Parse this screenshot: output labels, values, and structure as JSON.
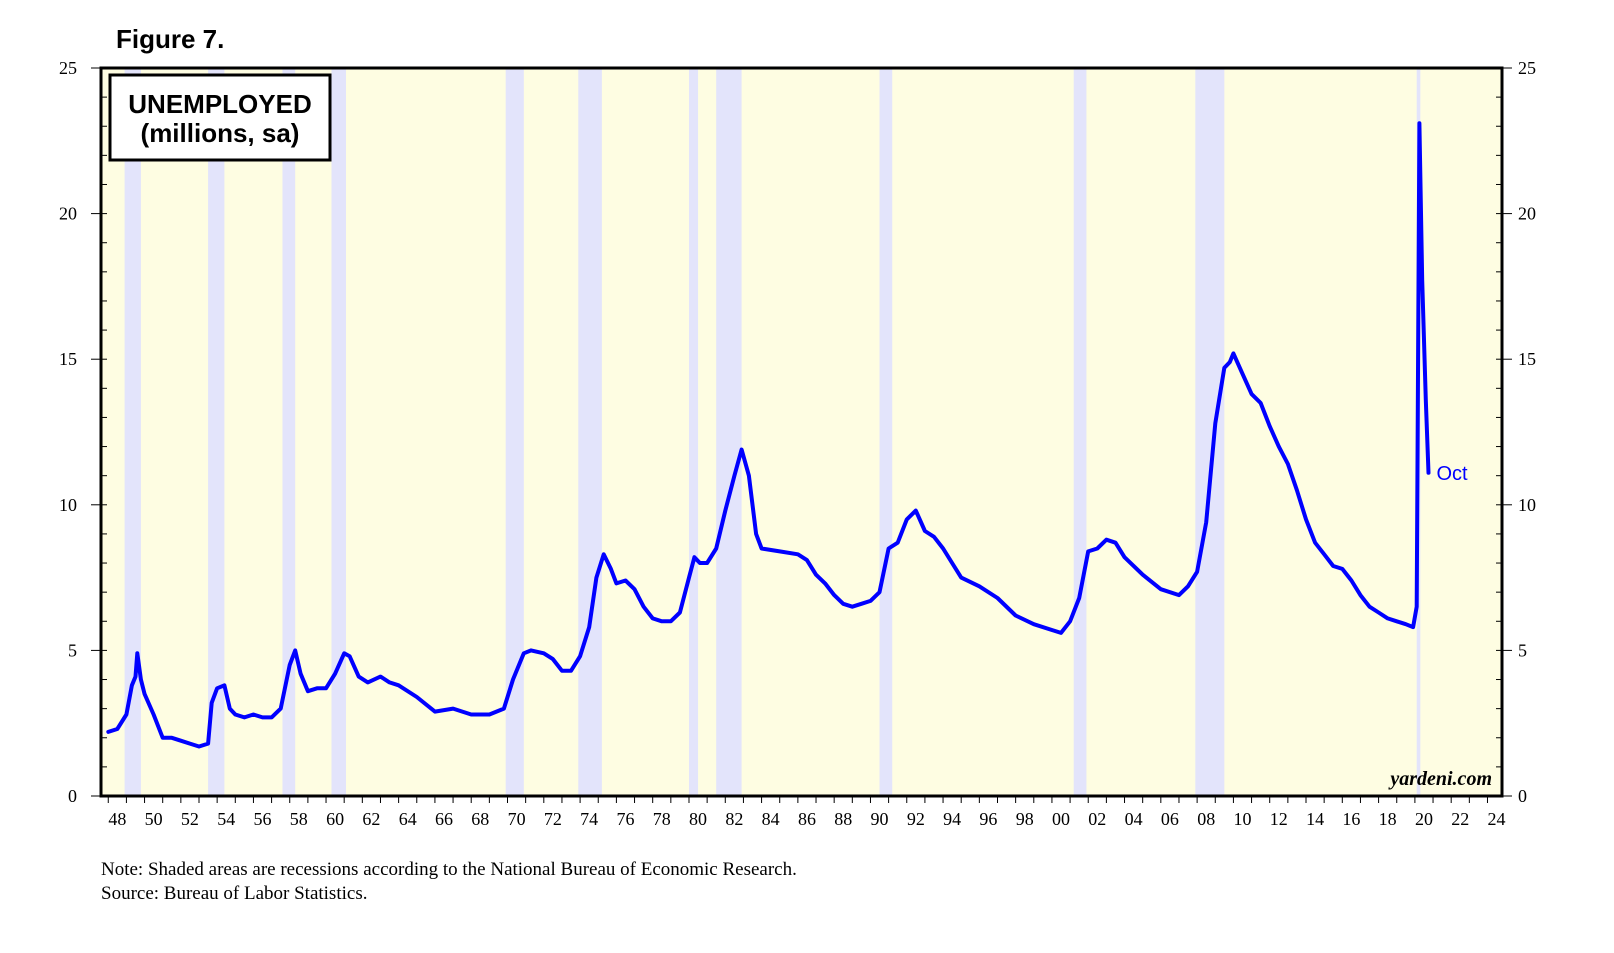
{
  "figure_label": "Figure 7.",
  "note": "Note: Shaded areas are recessions according to the National Bureau of Economic Research.",
  "source": "Source: Bureau of Labor Statistics.",
  "watermark": "yardeni.com",
  "colors": {
    "background": "#fefde2",
    "recession": "#e3e4fb",
    "line": "#0000ff",
    "frame": "#000000"
  },
  "chart_data": {
    "type": "line",
    "title": "UNEMPLOYED",
    "subtitle": "(millions, sa)",
    "xlabel": "",
    "ylabel": "",
    "xlim": [
      1947.6,
      2024.8
    ],
    "ylim": [
      0,
      25
    ],
    "y_ticks": [
      0,
      5,
      10,
      15,
      20,
      25
    ],
    "x_tick_labels": [
      "48",
      "50",
      "52",
      "54",
      "56",
      "58",
      "60",
      "62",
      "64",
      "66",
      "68",
      "70",
      "72",
      "74",
      "76",
      "78",
      "80",
      "82",
      "84",
      "86",
      "88",
      "90",
      "92",
      "94",
      "96",
      "98",
      "00",
      "02",
      "04",
      "06",
      "08",
      "10",
      "12",
      "14",
      "16",
      "18",
      "20",
      "22",
      "24"
    ],
    "x_tick_years": [
      1948,
      1950,
      1952,
      1954,
      1956,
      1958,
      1960,
      1962,
      1964,
      1966,
      1968,
      1970,
      1972,
      1974,
      1976,
      1978,
      1980,
      1982,
      1984,
      1986,
      1988,
      1990,
      1992,
      1994,
      1996,
      1998,
      2000,
      2002,
      2004,
      2006,
      2008,
      2010,
      2012,
      2014,
      2016,
      2018,
      2020,
      2022,
      2024
    ],
    "end_label": "Oct",
    "recessions": [
      [
        1948.9,
        1949.8
      ],
      [
        1953.5,
        1954.4
      ],
      [
        1957.6,
        1958.3
      ],
      [
        1960.3,
        1961.1
      ],
      [
        1969.9,
        1970.9
      ],
      [
        1973.9,
        1975.2
      ],
      [
        1980.0,
        1980.5
      ],
      [
        1981.5,
        1982.9
      ],
      [
        1990.5,
        1991.2
      ],
      [
        2001.2,
        2001.9
      ],
      [
        2007.9,
        2009.5
      ],
      [
        2020.1,
        2020.3
      ]
    ],
    "series": [
      {
        "name": "Unemployed (millions, sa)",
        "x": [
          1948.0,
          1948.5,
          1949.0,
          1949.3,
          1949.5,
          1949.6,
          1949.8,
          1950.0,
          1950.5,
          1951.0,
          1951.5,
          1952.0,
          1952.5,
          1953.0,
          1953.5,
          1953.7,
          1954.0,
          1954.4,
          1954.7,
          1955.0,
          1955.5,
          1956.0,
          1956.5,
          1957.0,
          1957.5,
          1958.0,
          1958.3,
          1958.6,
          1959.0,
          1959.5,
          1960.0,
          1960.5,
          1961.0,
          1961.3,
          1961.8,
          1962.3,
          1963.0,
          1963.5,
          1964.0,
          1965.0,
          1966.0,
          1967.0,
          1968.0,
          1969.0,
          1969.8,
          1970.3,
          1970.9,
          1971.3,
          1972.0,
          1972.5,
          1973.0,
          1973.5,
          1974.0,
          1974.5,
          1974.9,
          1975.3,
          1975.7,
          1976.0,
          1976.5,
          1977.0,
          1977.5,
          1978.0,
          1978.5,
          1979.0,
          1979.5,
          1980.0,
          1980.3,
          1980.6,
          1981.0,
          1981.5,
          1982.0,
          1982.5,
          1982.9,
          1983.3,
          1983.7,
          1984.0,
          1985.0,
          1986.0,
          1986.5,
          1987.0,
          1987.5,
          1988.0,
          1988.5,
          1989.0,
          1989.5,
          1990.0,
          1990.5,
          1991.0,
          1991.5,
          1992.0,
          1992.5,
          1993.0,
          1993.5,
          1994.0,
          1994.5,
          1995.0,
          1996.0,
          1997.0,
          1998.0,
          1999.0,
          2000.0,
          2000.5,
          2001.0,
          2001.5,
          2002.0,
          2002.5,
          2003.0,
          2003.5,
          2004.0,
          2005.0,
          2006.0,
          2007.0,
          2007.5,
          2008.0,
          2008.5,
          2009.0,
          2009.5,
          2009.8,
          2010.0,
          2010.5,
          2011.0,
          2011.5,
          2012.0,
          2012.5,
          2013.0,
          2013.5,
          2014.0,
          2014.5,
          2015.0,
          2015.5,
          2016.0,
          2016.5,
          2017.0,
          2017.5,
          2018.0,
          2018.5,
          2019.0,
          2019.5,
          2019.9,
          2020.1,
          2020.25,
          2020.4,
          2020.6,
          2020.75
        ],
        "values": [
          2.2,
          2.3,
          2.8,
          3.8,
          4.1,
          4.9,
          4.0,
          3.5,
          2.8,
          2.0,
          2.0,
          1.9,
          1.8,
          1.7,
          1.8,
          3.2,
          3.7,
          3.8,
          3.0,
          2.8,
          2.7,
          2.8,
          2.7,
          2.7,
          3.0,
          4.5,
          5.0,
          4.2,
          3.6,
          3.7,
          3.7,
          4.2,
          4.9,
          4.8,
          4.1,
          3.9,
          4.1,
          3.9,
          3.8,
          3.4,
          2.9,
          3.0,
          2.8,
          2.8,
          3.0,
          4.0,
          4.9,
          5.0,
          4.9,
          4.7,
          4.3,
          4.3,
          4.8,
          5.8,
          7.5,
          8.3,
          7.8,
          7.3,
          7.4,
          7.1,
          6.5,
          6.1,
          6.0,
          6.0,
          6.3,
          7.5,
          8.2,
          8.0,
          8.0,
          8.5,
          9.8,
          11.0,
          11.9,
          11.0,
          9.0,
          8.5,
          8.4,
          8.3,
          8.1,
          7.6,
          7.3,
          6.9,
          6.6,
          6.5,
          6.6,
          6.7,
          7.0,
          8.5,
          8.7,
          9.5,
          9.8,
          9.1,
          8.9,
          8.5,
          8.0,
          7.5,
          7.2,
          6.8,
          6.2,
          5.9,
          5.7,
          5.6,
          6.0,
          6.8,
          8.4,
          8.5,
          8.8,
          8.7,
          8.2,
          7.6,
          7.1,
          6.9,
          7.2,
          7.7,
          9.4,
          12.8,
          14.7,
          14.9,
          15.2,
          14.5,
          13.8,
          13.5,
          12.7,
          12.0,
          11.4,
          10.5,
          9.5,
          8.7,
          8.3,
          7.9,
          7.8,
          7.4,
          6.9,
          6.5,
          6.3,
          6.1,
          6.0,
          5.9,
          5.8,
          6.5,
          23.1,
          17.7,
          13.6,
          11.1
        ]
      }
    ]
  }
}
